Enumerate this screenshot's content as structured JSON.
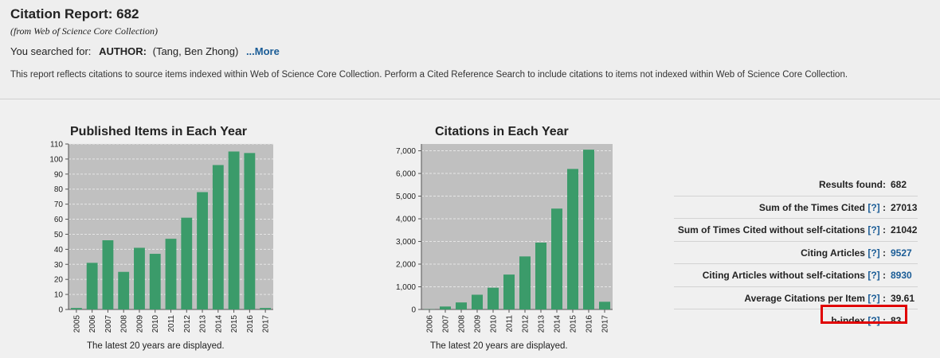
{
  "header": {
    "title": "Citation Report: 682",
    "source": "(from Web of Science Core Collection)",
    "searched_prefix": "You searched for:",
    "searched_field": "AUTHOR:",
    "searched_value": "(Tang, Ben Zhong)",
    "more_link": "...More",
    "note": "This report reflects citations to source items indexed within Web of Science Core Collection. Perform a Cited Reference Search to include citations to items not indexed within Web of Science Core Collection."
  },
  "chart_data": [
    {
      "type": "bar",
      "title": "Published Items in Each Year",
      "categories": [
        "2005",
        "2006",
        "2007",
        "2008",
        "2009",
        "2010",
        "2011",
        "2012",
        "2013",
        "2014",
        "2015",
        "2016",
        "2017"
      ],
      "values": [
        1,
        31,
        46,
        25,
        41,
        37,
        47,
        61,
        78,
        96,
        105,
        104,
        1
      ],
      "ylim": [
        0,
        110
      ],
      "yticks": [
        0,
        10,
        20,
        30,
        40,
        50,
        60,
        70,
        80,
        90,
        100,
        110
      ],
      "ytick_labels": [
        "0",
        "10",
        "20",
        "30",
        "40",
        "50",
        "60",
        "70",
        "80",
        "90",
        "100",
        "110"
      ],
      "footnote": "The latest 20 years are displayed.",
      "bar_color": "#3b9b6a",
      "plot_bg": "#c0c0c0"
    },
    {
      "type": "bar",
      "title": "Citations in Each Year",
      "categories": [
        "2006",
        "2007",
        "2008",
        "2009",
        "2010",
        "2011",
        "2012",
        "2013",
        "2014",
        "2015",
        "2016",
        "2017"
      ],
      "values": [
        10,
        130,
        310,
        650,
        960,
        1540,
        2340,
        2950,
        4450,
        6200,
        7050,
        340
      ],
      "ylim": [
        0,
        7300
      ],
      "yticks": [
        0,
        1000,
        2000,
        3000,
        4000,
        5000,
        6000,
        7000
      ],
      "ytick_labels": [
        "0",
        "1,000",
        "2,000",
        "3,000",
        "4,000",
        "5,000",
        "6,000",
        "7,000"
      ],
      "footnote": "The latest 20 years are displayed.",
      "bar_color": "#3b9b6a",
      "plot_bg": "#c0c0c0"
    }
  ],
  "stats": [
    {
      "label": "Results found:",
      "help": "",
      "value": "682",
      "link": false
    },
    {
      "label": "Sum of the Times Cited",
      "help": "[?]",
      "value": "27013",
      "link": false
    },
    {
      "label": "Sum of Times Cited without self-citations",
      "help": "[?]",
      "value": "21042",
      "link": false
    },
    {
      "label": "Citing Articles",
      "help": "[?]",
      "value": "9527",
      "link": true
    },
    {
      "label": "Citing Articles without self-citations",
      "help": "[?]",
      "value": "8930",
      "link": true
    },
    {
      "label": "Average Citations per Item",
      "help": "[?]",
      "value": "39.61",
      "link": false
    },
    {
      "label": "h-index",
      "help": "[?]",
      "value": "83",
      "link": false
    }
  ],
  "colors": {
    "link": "#1a5c96",
    "highlight": "#e00000"
  }
}
